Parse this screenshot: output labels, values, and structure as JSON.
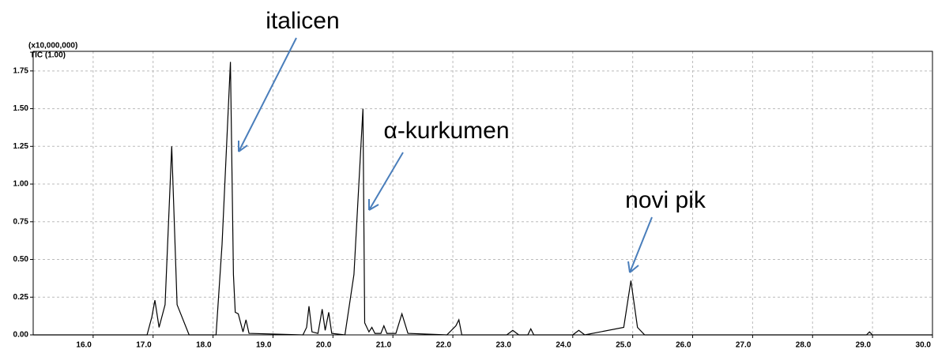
{
  "chart_data": {
    "type": "line",
    "scale_label": "(x10,000,000)",
    "x": [
      15.0,
      16.9,
      16.98,
      17.03,
      17.1,
      17.2,
      17.31,
      17.4,
      17.6,
      18.05,
      18.15,
      18.29,
      18.34,
      18.37,
      18.42,
      18.5,
      18.55,
      18.6,
      19.5,
      19.56,
      19.6,
      19.65,
      19.75,
      19.82,
      19.87,
      19.93,
      19.98,
      20.2,
      20.35,
      20.5,
      20.53,
      20.6,
      20.65,
      20.7,
      20.8,
      20.85,
      20.9,
      21.05,
      21.15,
      21.25,
      21.9,
      22.05,
      22.1,
      22.15,
      22.9,
      23.0,
      23.1,
      23.25,
      23.3,
      23.35,
      24.0,
      24.1,
      24.2,
      24.85,
      24.97,
      25.08,
      25.2,
      28.9,
      28.95,
      29.0,
      30.0
    ],
    "series": [
      {
        "name": "TIC (1.00)",
        "color": "#000000",
        "values": [
          0,
          0,
          0.12,
          0.23,
          0.05,
          0.2,
          1.25,
          0.2,
          0,
          0,
          0.6,
          1.81,
          0.4,
          0.15,
          0.14,
          0.02,
          0.1,
          0.01,
          0,
          0.05,
          0.19,
          0.02,
          0.01,
          0.17,
          0.03,
          0.15,
          0.01,
          0,
          0.4,
          1.5,
          0.08,
          0.02,
          0.05,
          0.01,
          0.01,
          0.06,
          0.01,
          0.01,
          0.14,
          0.01,
          0,
          0.06,
          0.1,
          0,
          0,
          0.03,
          0,
          0,
          0.04,
          0,
          0,
          0.03,
          0,
          0.05,
          0.36,
          0.05,
          0,
          0,
          0.02,
          0,
          0
        ]
      }
    ],
    "xlim": [
      15.0,
      30.0
    ],
    "ylim": [
      0,
      1.88
    ],
    "xticks": [
      {
        "value": 16,
        "label": "16.0"
      },
      {
        "value": 17,
        "label": "17.0"
      },
      {
        "value": 18,
        "label": "18.0"
      },
      {
        "value": 19,
        "label": "19.0"
      },
      {
        "value": 20,
        "label": "20.0"
      },
      {
        "value": 21,
        "label": "21.0"
      },
      {
        "value": 22,
        "label": "22.0"
      },
      {
        "value": 23,
        "label": "23.0"
      },
      {
        "value": 24,
        "label": "24.0"
      },
      {
        "value": 25,
        "label": "25.0"
      },
      {
        "value": 26,
        "label": "26.0"
      },
      {
        "value": 27,
        "label": "27.0"
      },
      {
        "value": 28,
        "label": "28.0"
      },
      {
        "value": 29,
        "label": "29.0"
      },
      {
        "value": 30,
        "label": "30.0"
      }
    ],
    "yticks": [
      {
        "value": 0,
        "label": "0.00"
      },
      {
        "value": 0.25,
        "label": "0.25"
      },
      {
        "value": 0.5,
        "label": "0.50"
      },
      {
        "value": 0.75,
        "label": "0.75"
      },
      {
        "value": 1,
        "label": "1.00"
      },
      {
        "value": 1.25,
        "label": "1.25"
      },
      {
        "value": 1.5,
        "label": "1.50"
      },
      {
        "value": 1.75,
        "label": "1.75"
      }
    ],
    "grid": true,
    "annotations": [
      {
        "text": "italicen"
      },
      {
        "text": "α-kurkumen"
      },
      {
        "text": "novi pik"
      }
    ]
  }
}
